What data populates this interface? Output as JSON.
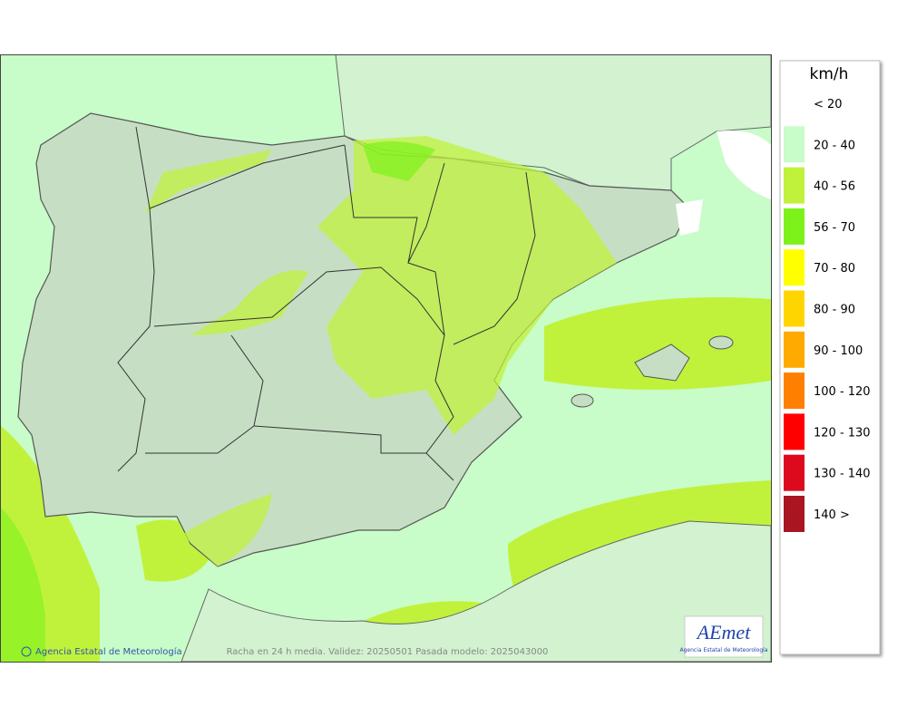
{
  "legend": {
    "title": "km/h",
    "items": [
      {
        "label": "< 20",
        "color": "#ffffff"
      },
      {
        "label": "20 - 40",
        "color": "#c8fcc8"
      },
      {
        "label": "40 - 56",
        "color": "#c0f23c"
      },
      {
        "label": "56 - 70",
        "color": "#7cf21a"
      },
      {
        "label": "70 - 80",
        "color": "#ffff00"
      },
      {
        "label": "80 - 90",
        "color": "#ffd500"
      },
      {
        "label": "90 - 100",
        "color": "#ffaa00"
      },
      {
        "label": "100 - 120",
        "color": "#ff8000"
      },
      {
        "label": "120 - 130",
        "color": "#ff0000"
      },
      {
        "label": "130 - 140",
        "color": "#dd0a1e"
      },
      {
        "label": "140 >",
        "color": "#aa1522"
      }
    ]
  },
  "footer": {
    "credit": "Agencia Estatal de Meteorología",
    "caption": "Racha en 24 h media. Validez: 20250501 Pasada modelo: 2025043000"
  },
  "logo": {
    "text": "AEmet",
    "subtitle": "Agencia Estatal de Meteorología"
  }
}
